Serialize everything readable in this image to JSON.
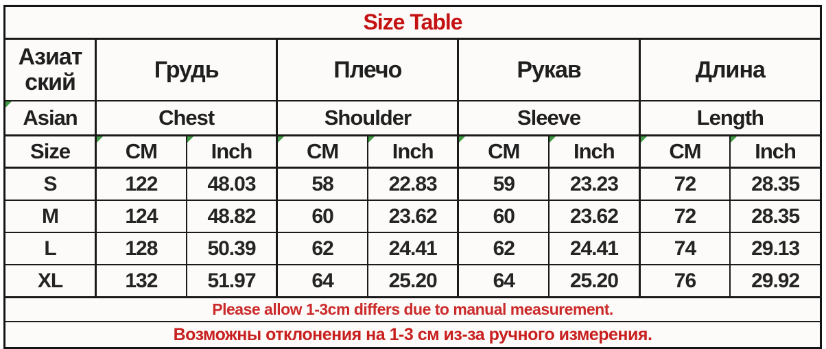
{
  "title": "Size Table",
  "colors": {
    "title_red": "#c41212",
    "note_en_red": "#cb2a2a",
    "note_ru_red": "#c81f1f",
    "marker_green": "#3f9c43",
    "text_black": "#1f1f1f",
    "cell_background": "#fcfbf9"
  },
  "header": {
    "ru_label_line1": "Азиат",
    "ru_label_line2": "ский",
    "en_label": "Asian",
    "size_label": "Size",
    "cm": "CM",
    "inch": "Inch",
    "groups": [
      {
        "ru": "Грудь",
        "en": "Chest"
      },
      {
        "ru": "Плечо",
        "en": "Shoulder"
      },
      {
        "ru": "Рукав",
        "en": "Sleeve"
      },
      {
        "ru": "Длина",
        "en": "Length"
      }
    ]
  },
  "rows": [
    {
      "size": "S",
      "values": [
        "122",
        "48.03",
        "58",
        "22.83",
        "59",
        "23.23",
        "72",
        "28.35"
      ]
    },
    {
      "size": "M",
      "values": [
        "124",
        "48.82",
        "60",
        "23.62",
        "60",
        "23.62",
        "72",
        "28.35"
      ]
    },
    {
      "size": "L",
      "values": [
        "128",
        "50.39",
        "62",
        "24.41",
        "62",
        "24.41",
        "74",
        "29.13"
      ]
    },
    {
      "size": "XL",
      "values": [
        "132",
        "51.97",
        "64",
        "25.20",
        "64",
        "25.20",
        "76",
        "29.92"
      ]
    }
  ],
  "notes": {
    "en": "Please allow 1-3cm differs due to manual measurement.",
    "ru": "Возможны отклонения на 1-3 см из-за ручного измерения."
  },
  "chart_data": {
    "type": "table",
    "title": "Size Table",
    "columns": [
      "Size (Азиатский/Asian)",
      "Chest CM",
      "Chest Inch",
      "Shoulder CM",
      "Shoulder Inch",
      "Sleeve CM",
      "Sleeve Inch",
      "Length CM",
      "Length Inch"
    ],
    "rows": [
      [
        "S",
        122,
        48.03,
        58,
        22.83,
        59,
        23.23,
        72,
        28.35
      ],
      [
        "M",
        124,
        48.82,
        60,
        23.62,
        60,
        23.62,
        72,
        28.35
      ],
      [
        "L",
        128,
        50.39,
        62,
        24.41,
        62,
        24.41,
        74,
        29.13
      ],
      [
        "XL",
        132,
        51.97,
        64,
        25.2,
        64,
        25.2,
        76,
        29.92
      ]
    ],
    "notes": [
      "Please allow 1-3cm differs due to manual measurement.",
      "Возможны отклонения на 1-3 см из-за ручного измерения."
    ]
  }
}
